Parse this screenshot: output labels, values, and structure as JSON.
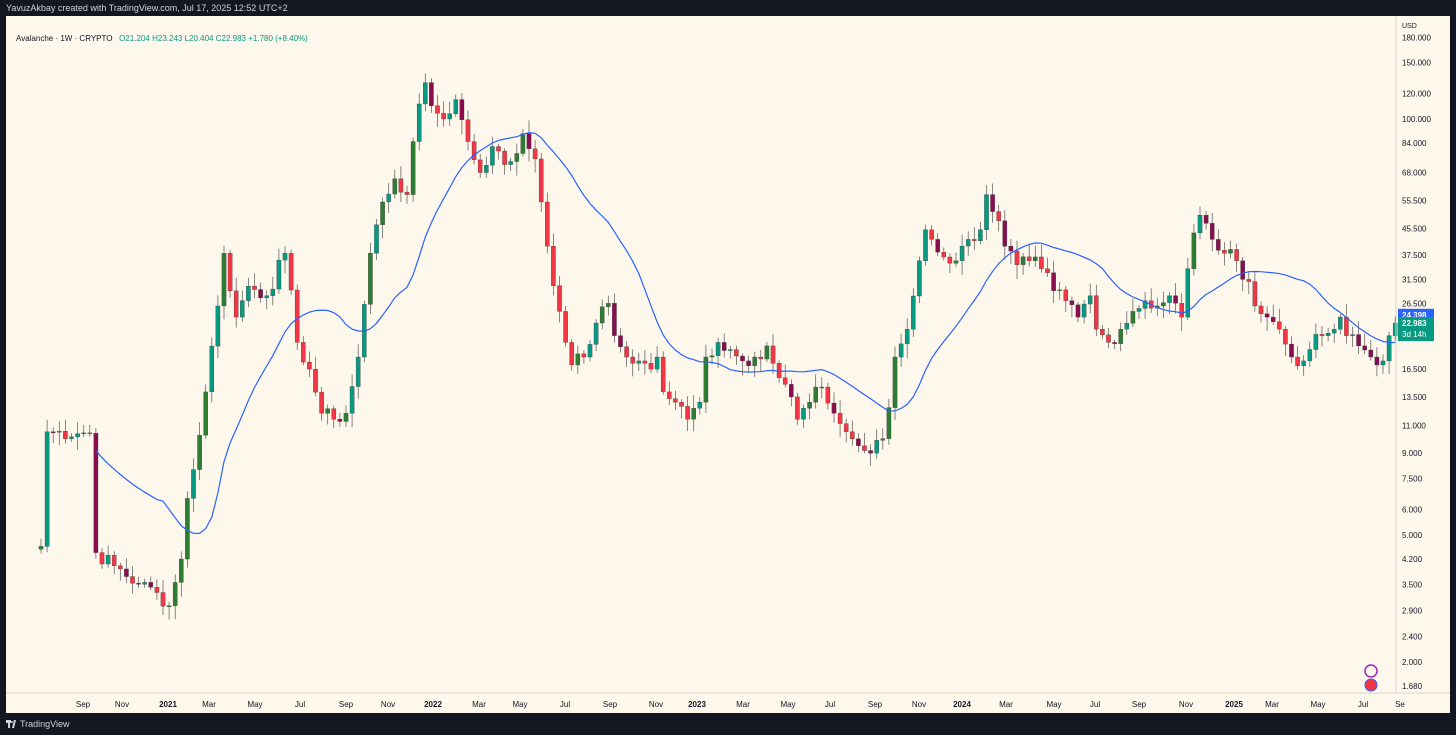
{
  "header": {
    "attribution": "YavuzAkbay created with TradingView.com, Jul 17, 2025 12:52 UTC+2"
  },
  "footer": {
    "brand": "TradingView"
  },
  "legend": {
    "symbol": "Avalanche · 1W · CRYPTO",
    "open": "O21.204",
    "high": "H23.243",
    "low": "L20.404",
    "close": "C22.983",
    "change": "+1.780 (+8.40%)"
  },
  "chart_data": {
    "type": "candlestick",
    "timeframe": "1W",
    "yscale": "log",
    "currency": "USD",
    "ylim": [
      1.6,
      210
    ],
    "y_ticks": [
      "180.000",
      "150.000",
      "120.000",
      "100.000",
      "84.000",
      "68.000",
      "55.500",
      "45.500",
      "37.500",
      "31.500",
      "26.500",
      "16.500",
      "13.500",
      "11.000",
      "9.000",
      "7.500",
      "6.000",
      "5.000",
      "4.200",
      "3.500",
      "2.900",
      "2.400",
      "2.000",
      "1.680"
    ],
    "x_ticks": [
      "Sep",
      "Nov",
      "2021",
      "Mar",
      "May",
      "Jul",
      "Sep",
      "Nov",
      "2022",
      "Mar",
      "May",
      "Jul",
      "Sep",
      "Nov",
      "2023",
      "Mar",
      "May",
      "Jul",
      "Sep",
      "Nov",
      "2024",
      "Mar",
      "May",
      "Jul",
      "Sep",
      "Nov",
      "2025",
      "Mar",
      "May",
      "Jul",
      "Se"
    ],
    "price_scale_label": "USD",
    "last_price": {
      "value": 22.983,
      "label": "22.983",
      "countdown": "3d 14h"
    },
    "ma_value": {
      "value": 24.398,
      "label": "24.398"
    },
    "colors": {
      "up": "#089981",
      "down": "#f23645",
      "up_alt": "#2e7d32",
      "down_alt": "#880e4f",
      "ma": "#2962ff"
    },
    "close_path": [
      [
        0,
        4.6
      ],
      [
        1,
        10.5
      ],
      [
        8,
        10.4
      ],
      [
        9,
        4.4
      ],
      [
        12,
        4.0
      ],
      [
        16,
        3.5
      ],
      [
        19,
        3.3
      ],
      [
        21,
        3.0
      ],
      [
        23,
        4.2
      ],
      [
        24,
        6.5
      ],
      [
        25,
        8.0
      ],
      [
        27,
        14.0
      ],
      [
        29,
        26.0
      ],
      [
        30,
        38.0
      ],
      [
        32,
        24.0
      ],
      [
        34,
        30.0
      ],
      [
        37,
        28.0
      ],
      [
        40,
        38.0
      ],
      [
        42,
        20.0
      ],
      [
        44,
        16.5
      ],
      [
        46,
        12.0
      ],
      [
        48,
        11.5
      ],
      [
        50,
        12.0
      ],
      [
        52,
        18.0
      ],
      [
        54,
        38.0
      ],
      [
        56,
        55.0
      ],
      [
        58,
        65.0
      ],
      [
        60,
        58.0
      ],
      [
        61,
        85.0
      ],
      [
        63,
        130.0
      ],
      [
        64,
        110.0
      ],
      [
        66,
        100.0
      ],
      [
        68,
        115.0
      ],
      [
        70,
        85.0
      ],
      [
        72,
        68.0
      ],
      [
        74,
        82.0
      ],
      [
        76,
        72.0
      ],
      [
        78,
        78.0
      ],
      [
        79,
        90.0
      ],
      [
        81,
        75.0
      ],
      [
        82,
        55.0
      ],
      [
        83,
        40.0
      ],
      [
        85,
        25.0
      ],
      [
        86,
        20.0
      ],
      [
        87,
        17.0
      ],
      [
        89,
        18.0
      ],
      [
        91,
        23.0
      ],
      [
        93,
        26.5
      ],
      [
        94,
        21.0
      ],
      [
        96,
        18.0
      ],
      [
        98,
        17.5
      ],
      [
        100,
        16.5
      ],
      [
        101,
        18.0
      ],
      [
        102,
        14.0
      ],
      [
        104,
        13.0
      ],
      [
        106,
        11.5
      ],
      [
        108,
        13.0
      ],
      [
        109,
        18.0
      ],
      [
        111,
        20.0
      ],
      [
        113,
        19.0
      ],
      [
        115,
        17.5
      ],
      [
        117,
        18.0
      ],
      [
        119,
        19.5
      ],
      [
        121,
        15.5
      ],
      [
        123,
        13.5
      ],
      [
        124,
        11.5
      ],
      [
        126,
        13.0
      ],
      [
        128,
        14.5
      ],
      [
        130,
        12.0
      ],
      [
        132,
        10.5
      ],
      [
        134,
        9.5
      ],
      [
        136,
        9.0
      ],
      [
        138,
        10.0
      ],
      [
        139,
        12.5
      ],
      [
        140,
        18.0
      ],
      [
        142,
        22.0
      ],
      [
        144,
        36.0
      ],
      [
        145,
        45.0
      ],
      [
        146,
        42.0
      ],
      [
        148,
        37.0
      ],
      [
        150,
        36.0
      ],
      [
        152,
        42.0
      ],
      [
        154,
        45.0
      ],
      [
        155,
        58.0
      ],
      [
        157,
        48.0
      ],
      [
        158,
        40.0
      ],
      [
        160,
        35.0
      ],
      [
        162,
        36.0
      ],
      [
        164,
        34.0
      ],
      [
        166,
        29.0
      ],
      [
        168,
        27.0
      ],
      [
        170,
        24.0
      ],
      [
        172,
        28.0
      ],
      [
        173,
        22.0
      ],
      [
        175,
        20.0
      ],
      [
        177,
        22.0
      ],
      [
        179,
        25.0
      ],
      [
        181,
        27.0
      ],
      [
        183,
        26.0
      ],
      [
        185,
        28.0
      ],
      [
        187,
        24.0
      ],
      [
        188,
        34.0
      ],
      [
        189,
        44.0
      ],
      [
        190,
        50.0
      ],
      [
        192,
        42.0
      ],
      [
        194,
        38.0
      ],
      [
        196,
        36.0
      ],
      [
        198,
        31.0
      ],
      [
        199,
        26.0
      ],
      [
        201,
        24.0
      ],
      [
        203,
        22.0
      ],
      [
        205,
        18.0
      ],
      [
        207,
        17.5
      ],
      [
        208,
        19.0
      ],
      [
        210,
        21.0
      ],
      [
        212,
        22.0
      ],
      [
        213,
        24.0
      ],
      [
        214,
        21.0
      ],
      [
        216,
        19.5
      ],
      [
        218,
        18.0
      ],
      [
        219,
        17.0
      ],
      [
        220,
        17.5
      ],
      [
        221,
        21.0
      ],
      [
        222,
        22.983
      ]
    ]
  }
}
